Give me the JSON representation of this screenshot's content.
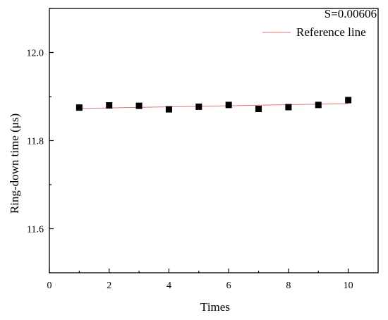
{
  "chart_data": {
    "type": "scatter",
    "title": "",
    "xlabel": "Times",
    "ylabel": "Ring-down time (μs)",
    "xlim": [
      0,
      11
    ],
    "ylim": [
      11.5,
      12.1
    ],
    "xticks": [
      0,
      2,
      4,
      6,
      8,
      10
    ],
    "yticks": [
      11.6,
      11.8,
      12.0
    ],
    "ytick_labels": [
      "11.6",
      "11.8",
      "12.0"
    ],
    "grid": false,
    "annotation": "S=0.00606",
    "legend": {
      "placement": "top-right",
      "entries": [
        {
          "name": "Reference line",
          "color": "#e87070",
          "style": "line"
        }
      ]
    },
    "series": [
      {
        "marker": "square",
        "color": "#000000",
        "x": [
          1,
          2,
          3,
          4,
          5,
          6,
          7,
          8,
          9,
          10
        ],
        "y": [
          11.875,
          11.88,
          11.879,
          11.871,
          11.877,
          11.881,
          11.872,
          11.876,
          11.881,
          11.892
        ]
      }
    ],
    "reference_line": {
      "name": "Reference line",
      "color": "#e87070",
      "x": [
        1,
        10
      ],
      "y": [
        11.873,
        11.884
      ]
    }
  }
}
